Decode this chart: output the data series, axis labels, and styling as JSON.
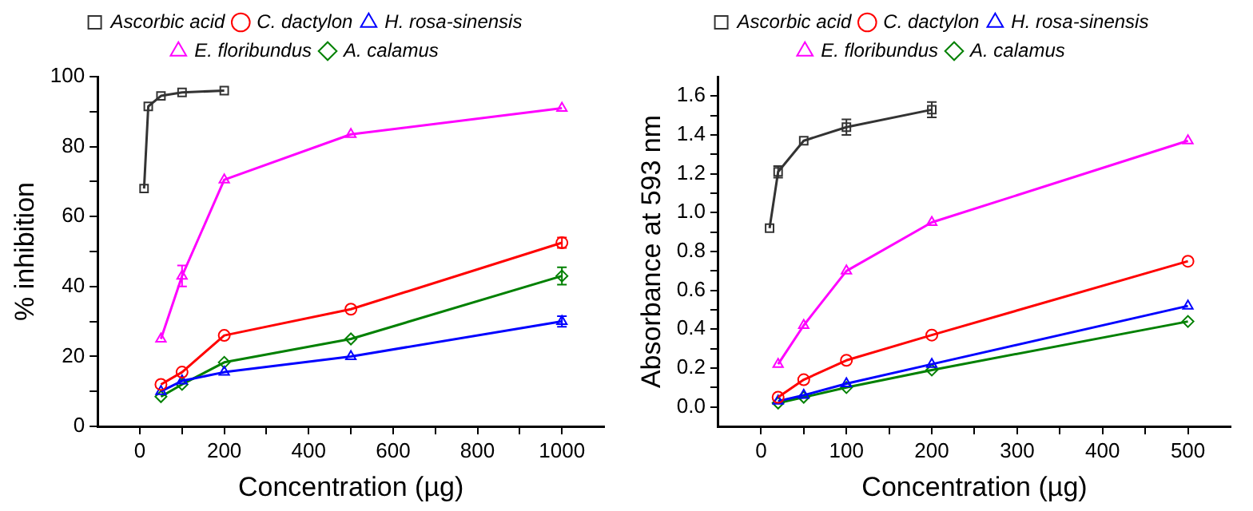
{
  "chart_data": [
    {
      "type": "line",
      "xlabel": "Concentration (µg)",
      "ylabel": "% inhibition",
      "xlim": [
        -100,
        1100
      ],
      "xticks": [
        0,
        {
          "value": 100,
          "label": null
        },
        200,
        {
          "value": 300,
          "label": null
        },
        400,
        {
          "value": 500,
          "label": null
        },
        600,
        {
          "value": 700,
          "label": null
        },
        800,
        {
          "value": 900,
          "label": null
        },
        1000
      ],
      "ylim": [
        0,
        100
      ],
      "yticks": [
        0,
        {
          "value": 10,
          "label": null
        },
        20,
        {
          "value": 30,
          "label": null
        },
        40,
        {
          "value": 50,
          "label": null
        },
        60,
        {
          "value": 70,
          "label": null
        },
        80,
        {
          "value": 90,
          "label": null
        },
        100
      ],
      "grid": false,
      "legend": "top",
      "line_style": "solid",
      "series": [
        {
          "name": "Ascorbic acid",
          "color": "#333333",
          "marker": "square",
          "x": [
            10,
            20,
            50,
            100,
            200
          ],
          "values": [
            68,
            91.5,
            94.5,
            95.5,
            96
          ]
        },
        {
          "name": "C. dactylon",
          "color": "#ff0000",
          "marker": "circle",
          "x": [
            50,
            100,
            200,
            500,
            1000
          ],
          "values": [
            12,
            15.5,
            26,
            33.5,
            52.5
          ],
          "errors": [
            null,
            null,
            null,
            null,
            1.5
          ]
        },
        {
          "name": "H. rosa-sinensis",
          "color": "#0000ff",
          "marker": "triangle",
          "x": [
            50,
            100,
            200,
            500,
            1000
          ],
          "values": [
            10,
            13,
            15.5,
            20,
            30
          ],
          "errors": [
            null,
            null,
            null,
            null,
            1.5
          ]
        },
        {
          "name": "E. floribundus",
          "color": "#ff00ff",
          "marker": "triangle",
          "x": [
            50,
            100,
            200,
            500,
            1000
          ],
          "values": [
            25,
            43,
            70.5,
            83.5,
            91
          ],
          "errors": [
            null,
            3,
            null,
            null,
            null
          ]
        },
        {
          "name": "A. calamus",
          "color": "#008000",
          "marker": "diamond",
          "x": [
            50,
            100,
            200,
            500,
            1000
          ],
          "values": [
            8.5,
            12,
            18.3,
            25,
            43
          ],
          "errors": [
            null,
            null,
            null,
            null,
            2.5
          ]
        }
      ]
    },
    {
      "type": "line",
      "xlabel": "Concentration (µg)",
      "ylabel": "Absorbance at 593 nm",
      "xlim": [
        -50,
        550
      ],
      "xticks": [
        0,
        {
          "value": 50,
          "label": null
        },
        100,
        {
          "value": 150,
          "label": null
        },
        200,
        {
          "value": 250,
          "label": null
        },
        300,
        {
          "value": 350,
          "label": null
        },
        400,
        {
          "value": 450,
          "label": null
        },
        500
      ],
      "ylim": [
        -0.1,
        1.7
      ],
      "yticks": [
        {
          "value": 0,
          "label": "0.0"
        },
        {
          "value": 0.1,
          "label": null
        },
        0.2,
        {
          "value": 0.3,
          "label": null
        },
        0.4,
        {
          "value": 0.5,
          "label": null
        },
        0.6,
        {
          "value": 0.7,
          "label": null
        },
        0.8,
        {
          "value": 0.9,
          "label": null
        },
        {
          "value": 1,
          "label": "1.0"
        },
        {
          "value": 1.1,
          "label": null
        },
        1.2,
        {
          "value": 1.3,
          "label": null
        },
        1.4,
        {
          "value": 1.5,
          "label": null
        },
        1.6
      ],
      "grid": false,
      "legend": "top",
      "line_style": "solid",
      "series": [
        {
          "name": "Ascorbic acid",
          "color": "#333333",
          "marker": "square",
          "x": [
            10,
            20,
            50,
            100,
            200
          ],
          "values": [
            0.92,
            1.21,
            1.37,
            1.44,
            1.53
          ],
          "errors": [
            null,
            0.03,
            null,
            0.04,
            0.04
          ]
        },
        {
          "name": "C. dactylon",
          "color": "#ff0000",
          "marker": "circle",
          "x": [
            20,
            50,
            100,
            200,
            500
          ],
          "values": [
            0.05,
            0.14,
            0.24,
            0.37,
            0.75
          ]
        },
        {
          "name": "H. rosa-sinensis",
          "color": "#0000ff",
          "marker": "triangle",
          "x": [
            20,
            50,
            100,
            200,
            500
          ],
          "values": [
            0.03,
            0.06,
            0.12,
            0.22,
            0.52
          ]
        },
        {
          "name": "E. floribundus",
          "color": "#ff00ff",
          "marker": "triangle",
          "x": [
            20,
            50,
            100,
            200,
            500
          ],
          "values": [
            0.22,
            0.42,
            0.7,
            0.95,
            1.37
          ]
        },
        {
          "name": "A. calamus",
          "color": "#008000",
          "marker": "diamond",
          "x": [
            20,
            50,
            100,
            200,
            500
          ],
          "values": [
            0.02,
            0.05,
            0.1,
            0.19,
            0.44
          ]
        }
      ]
    }
  ]
}
